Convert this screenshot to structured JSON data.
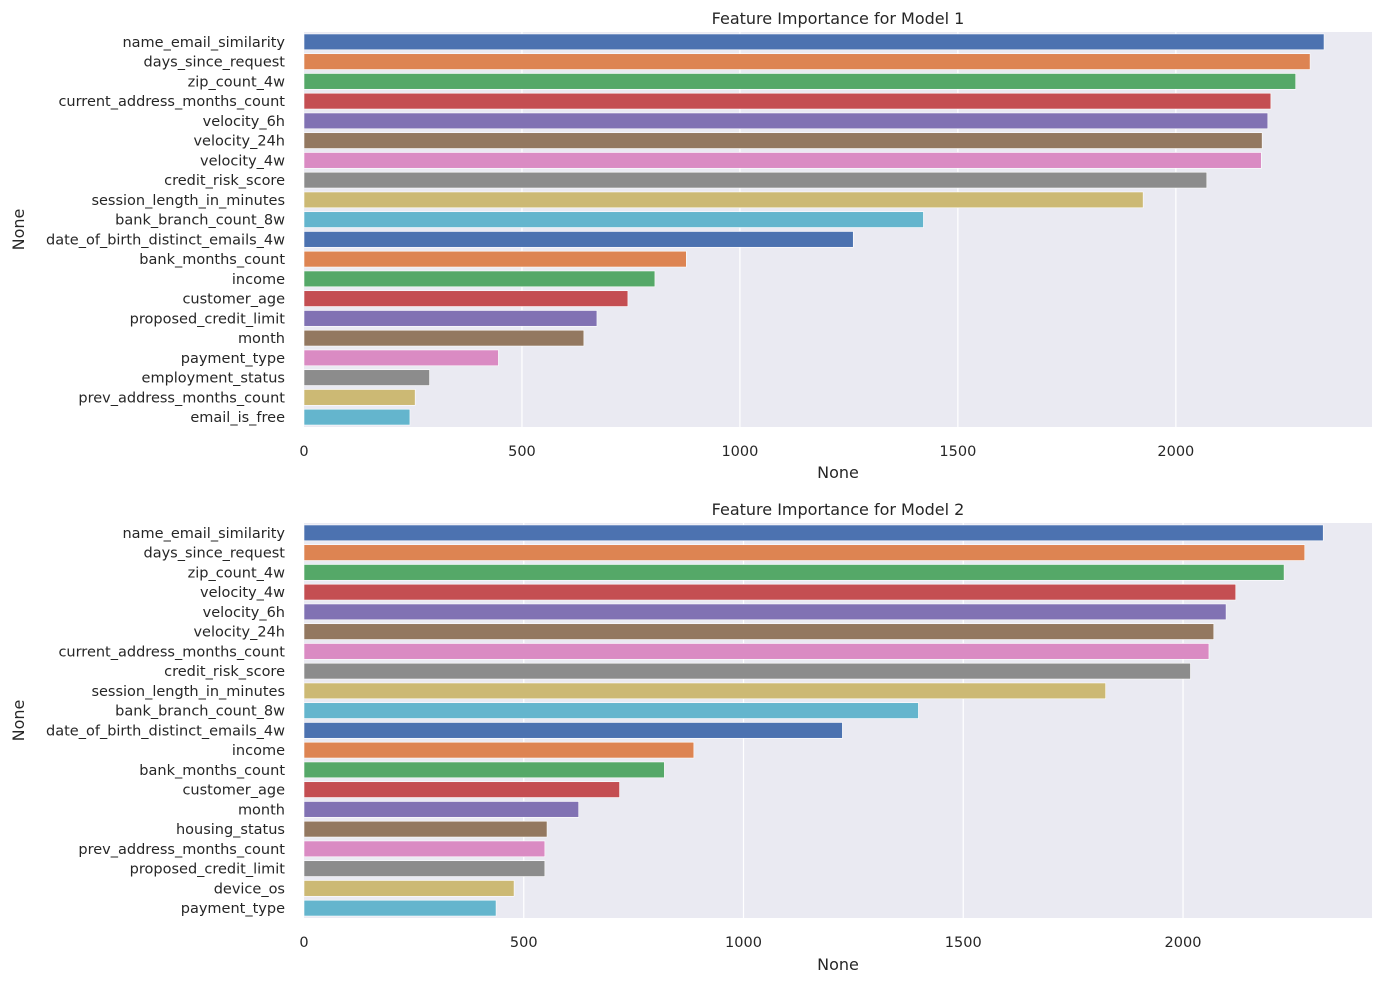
{
  "chart_data": [
    {
      "type": "bar",
      "orientation": "horizontal",
      "title": "Feature Importance for Model 1",
      "xlabel": "None",
      "ylabel": "None",
      "xlim": [
        0,
        2450
      ],
      "xticks": [
        0,
        500,
        1000,
        1500,
        2000
      ],
      "xtick_labels": [
        "0",
        "500",
        "1000",
        "1500",
        "2000"
      ],
      "grid": true,
      "categories": [
        "name_email_similarity",
        "days_since_request",
        "zip_count_4w",
        "current_address_months_count",
        "velocity_6h",
        "velocity_24h",
        "velocity_4w",
        "credit_risk_score",
        "session_length_in_minutes",
        "bank_branch_count_8w",
        "date_of_birth_distinct_emails_4w",
        "bank_months_count",
        "income",
        "customer_age",
        "proposed_credit_limit",
        "month",
        "payment_type",
        "employment_status",
        "prev_address_months_count",
        "email_is_free"
      ],
      "values": [
        2340,
        2308,
        2275,
        2218,
        2211,
        2198,
        2196,
        2071,
        1925,
        1421,
        1260,
        877,
        805,
        743,
        672,
        642,
        446,
        288,
        255,
        243
      ]
    },
    {
      "type": "bar",
      "orientation": "horizontal",
      "title": "Feature Importance for Model 2",
      "xlabel": "None",
      "ylabel": "None",
      "xlim": [
        0,
        2430
      ],
      "xticks": [
        0,
        500,
        1000,
        1500,
        2000
      ],
      "xtick_labels": [
        "0",
        "500",
        "1000",
        "1500",
        "2000"
      ],
      "grid": true,
      "categories": [
        "name_email_similarity",
        "days_since_request",
        "zip_count_4w",
        "velocity_4w",
        "velocity_6h",
        "velocity_24h",
        "current_address_months_count",
        "credit_risk_score",
        "session_length_in_minutes",
        "bank_branch_count_8w",
        "date_of_birth_distinct_emails_4w",
        "income",
        "bank_months_count",
        "customer_age",
        "month",
        "housing_status",
        "prev_address_months_count",
        "proposed_credit_limit",
        "device_os",
        "payment_type"
      ],
      "values": [
        2319,
        2277,
        2230,
        2120,
        2098,
        2070,
        2059,
        2017,
        1824,
        1398,
        1225,
        887,
        820,
        718,
        625,
        553,
        548,
        548,
        478,
        437
      ]
    }
  ],
  "palette": [
    "#4c72b0",
    "#dd8452",
    "#55a868",
    "#c44e52",
    "#8172b3",
    "#937860",
    "#da8bc3",
    "#8c8c8c",
    "#ccb974",
    "#64b5cd"
  ]
}
